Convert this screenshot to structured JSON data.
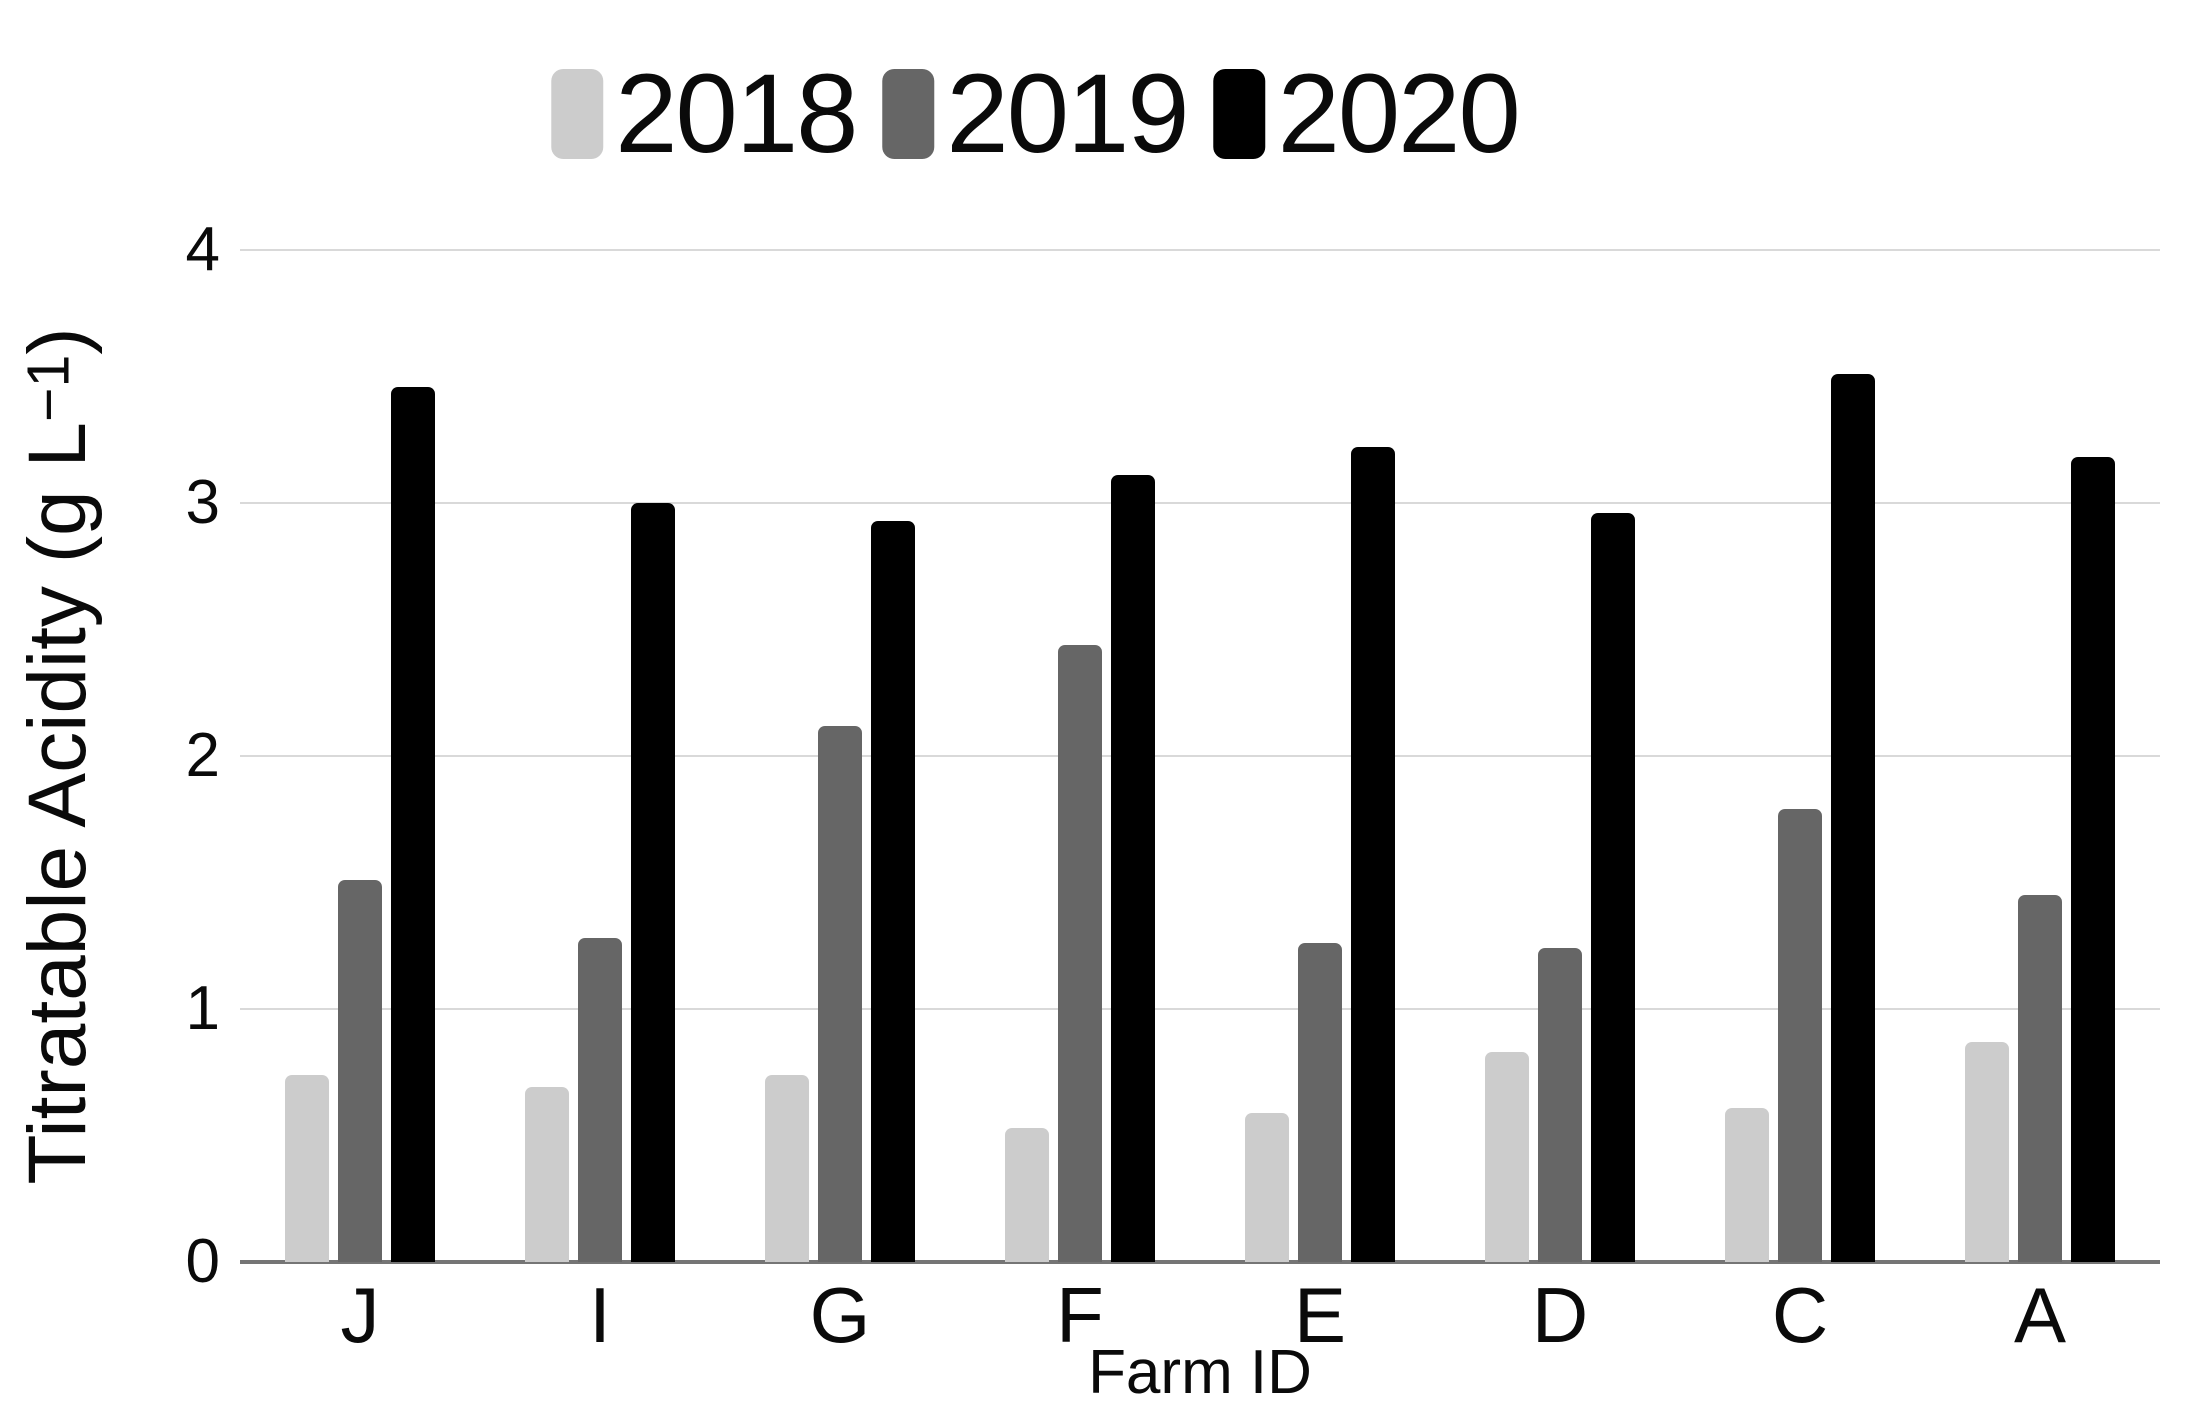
{
  "legend": {
    "items": [
      {
        "label": "2018",
        "color": "#cccccc"
      },
      {
        "label": "2019",
        "color": "#666666"
      },
      {
        "label": "2020",
        "color": "#000000"
      }
    ]
  },
  "y_axis": {
    "title_main": "Titratable Acidity (g L",
    "title_sup": "−1",
    "title_close": ")",
    "ticks": [
      0,
      1,
      2,
      3,
      4
    ]
  },
  "x_axis": {
    "title": "Farm ID"
  },
  "chart_data": {
    "type": "bar",
    "categories": [
      "J",
      "I",
      "G",
      "F",
      "E",
      "D",
      "C",
      "A"
    ],
    "series": [
      {
        "name": "2018",
        "color": "#cccccc",
        "values": [
          0.74,
          0.69,
          0.74,
          0.53,
          0.59,
          0.83,
          0.61,
          0.87
        ]
      },
      {
        "name": "2019",
        "color": "#666666",
        "values": [
          1.51,
          1.28,
          2.12,
          2.44,
          1.26,
          1.24,
          1.79,
          1.45
        ]
      },
      {
        "name": "2020",
        "color": "#000000",
        "values": [
          3.46,
          3.0,
          2.93,
          3.11,
          3.22,
          2.96,
          3.51,
          3.18
        ]
      }
    ],
    "title": "",
    "xlabel": "Farm ID",
    "ylabel": "Titratable Acidity (g L−1)",
    "ylim": [
      0,
      4
    ],
    "grid": true,
    "gridline_color": "#d9d9d9",
    "axis_line_color": "#757575",
    "legend_position": "top"
  }
}
